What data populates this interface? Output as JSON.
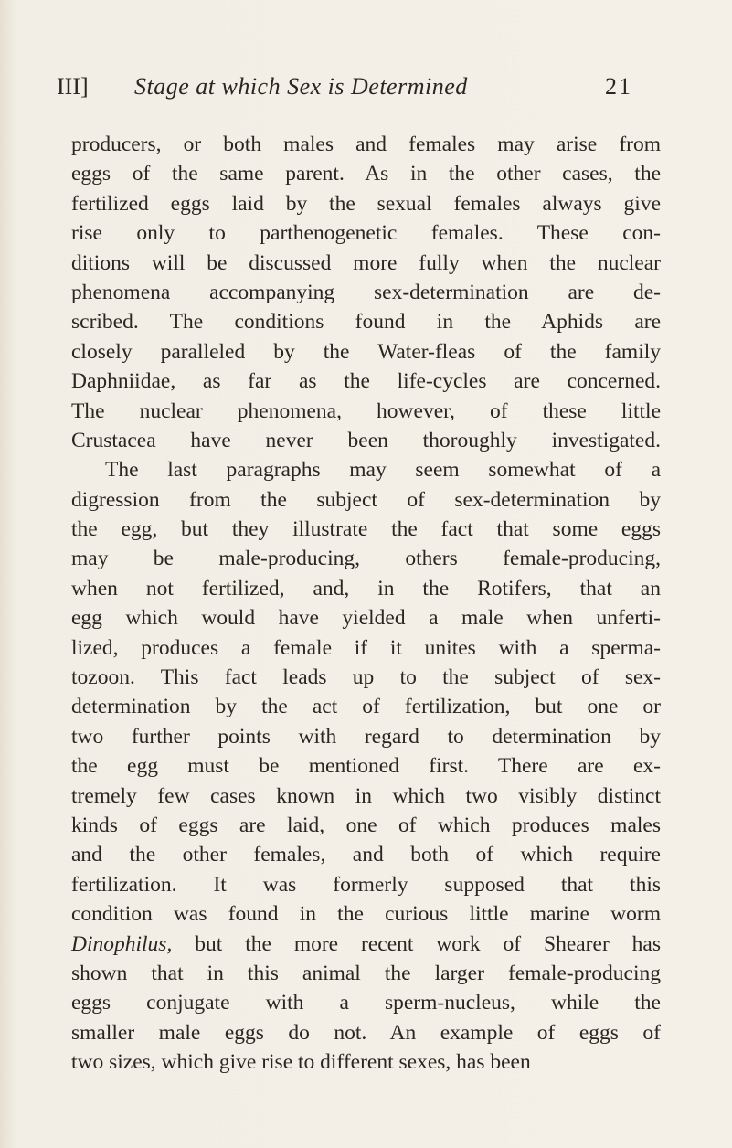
{
  "header": {
    "section": "III]",
    "title": "Stage at which Sex is Determined",
    "page_number": "21"
  },
  "body": {
    "paragraphs": [
      [
        "producers, or both males and females may arise from",
        "eggs of the same parent. As in the other cases, the",
        "fertilized eggs laid by the sexual females always give",
        "rise only to parthenogenetic females. These con-",
        "ditions will be discussed more fully when the nuclear",
        "phenomena accompanying sex-determination are de-",
        "scribed. The conditions found in the Aphids are",
        "closely paralleled by the Water-fleas of the family",
        "Daphniidae, as far as the life-cycles are concerned.",
        "The nuclear phenomena, however, of these little",
        "Crustacea have never been thoroughly investigated."
      ],
      [
        "The last paragraphs may seem somewhat of a",
        "digression from the subject of sex-determination by",
        "the egg, but they illustrate the fact that some eggs",
        "may be male-producing, others female-producing,",
        "when not fertilized, and, in the Rotifers, that an",
        "egg which would have yielded a male when unferti-",
        "lized, produces a female if it unites with a sperma-",
        "tozoon. This fact leads up to the subject of sex-",
        "determination by the act of fertilization, but one or",
        "two further points with regard to determination by",
        "the egg must be mentioned first. There are ex-",
        "tremely few cases known in which two visibly distinct",
        "kinds of eggs are laid, one of which produces males",
        "and the other females, and both of which require",
        "fertilization. It was formerly supposed that this",
        "condition was found in the curious little marine worm",
        {
          "italic": "Dinophilus,",
          "text": "but the more recent work of Shearer has"
        },
        "shown that in this animal the larger female-producing",
        "eggs conjugate with a sperm-nucleus, while the",
        "smaller male eggs do not. An example of eggs of",
        "two sizes, which give rise to different sexes, has been"
      ]
    ]
  }
}
